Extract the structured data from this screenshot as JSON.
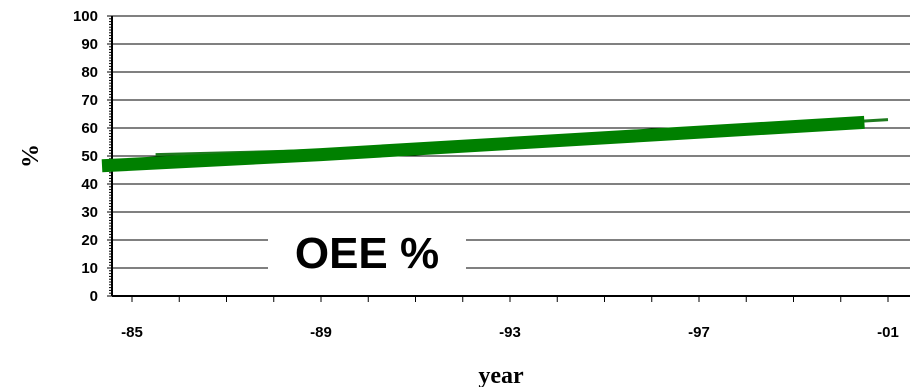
{
  "chart_data": {
    "type": "line",
    "title": "",
    "xlabel": "year",
    "ylabel": "%",
    "annotation": "OEE %",
    "y_ticks": [
      "0",
      "10",
      "20",
      "30",
      "40",
      "50",
      "60",
      "70",
      "80",
      "90",
      "100"
    ],
    "ylim": [
      0,
      100
    ],
    "x_tick_labels": [
      "-85",
      "-89",
      "-93",
      "-97",
      "-01"
    ],
    "x_tick_years": [
      1985,
      1989,
      1993,
      1997,
      2001
    ],
    "xlim": [
      1985,
      2001
    ],
    "grid": true,
    "legend": "none",
    "series": [
      {
        "style": "thick",
        "color": "#008000",
        "x": [
          1985,
          1989,
          1993,
          1996,
          2000.5
        ],
        "y": [
          46.5,
          50.5,
          54.5,
          57.5,
          62
        ]
      },
      {
        "style": "thin",
        "color": "#1e7a1e",
        "x": [
          1985.5,
          1989,
          1993,
          1997,
          2001
        ],
        "y": [
          50.5,
          52,
          55,
          59,
          63
        ]
      }
    ]
  }
}
